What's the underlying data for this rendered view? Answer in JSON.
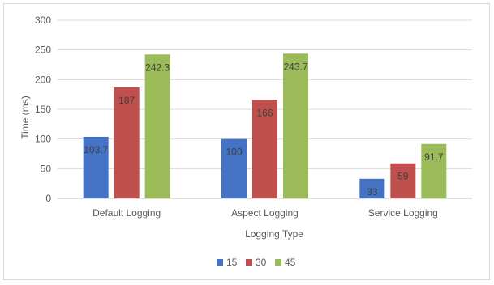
{
  "chart_data": {
    "type": "bar",
    "title": "",
    "xlabel": "Logging Type",
    "ylabel": "Time (ms)",
    "categories": [
      "Default Logging",
      "Aspect Logging",
      "Service Logging"
    ],
    "series": [
      {
        "name": "15",
        "values": [
          103.7,
          100,
          33
        ],
        "labels": [
          "103.7",
          "100",
          "33"
        ],
        "color": "#4472c4"
      },
      {
        "name": "30",
        "values": [
          187,
          166,
          59
        ],
        "labels": [
          "187",
          "166",
          "59"
        ],
        "color": "#c0504d"
      },
      {
        "name": "45",
        "values": [
          242.3,
          243.7,
          91.7
        ],
        "labels": [
          "242.3",
          "243.7",
          "91.7"
        ],
        "color": "#9bbb59"
      }
    ],
    "ylim": [
      0,
      300
    ],
    "yticks": [
      "0",
      "50",
      "100",
      "150",
      "200",
      "250",
      "300"
    ],
    "grid": true,
    "legend_position": "bottom"
  }
}
